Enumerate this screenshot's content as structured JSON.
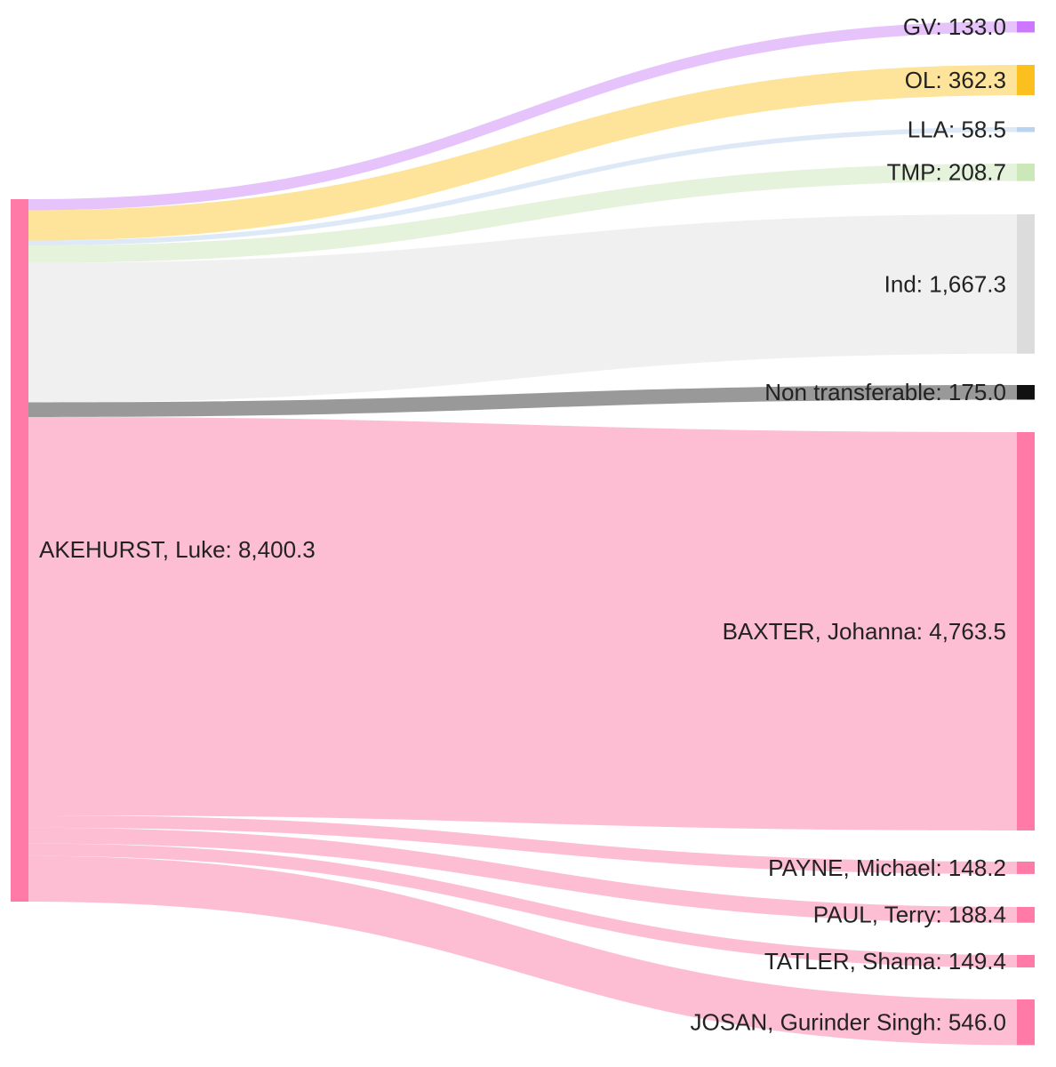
{
  "source": {
    "id": "akehurst",
    "label": "AKEHURST, Luke: 8,400.3",
    "value": 8400.3,
    "color": "#ff7aa6"
  },
  "targets": [
    {
      "id": "gv",
      "label": "GV: 133.0",
      "value": 133.0,
      "node_color": "#cc77ff",
      "link_color": "#e6c3fa"
    },
    {
      "id": "ol",
      "label": "OL: 362.3",
      "value": 362.3,
      "node_color": "#fcc01e",
      "link_color": "#fde49a"
    },
    {
      "id": "lla",
      "label": "LLA: 58.5",
      "value": 58.5,
      "node_color": "#b8d4f0",
      "link_color": "#dde9f6"
    },
    {
      "id": "tmp",
      "label": "TMP: 208.7",
      "value": 208.7,
      "node_color": "#cce8b9",
      "link_color": "#e5f2dc"
    },
    {
      "id": "ind",
      "label": "Ind: 1,667.3",
      "value": 1667.3,
      "node_color": "#dcdcdc",
      "link_color": "#f0f0f0"
    },
    {
      "id": "non-transferable",
      "label": "Non transferable: 175.0",
      "value": 175.0,
      "node_color": "#111111",
      "link_color": "#999999"
    },
    {
      "id": "baxter",
      "label": "BAXTER, Johanna: 4,763.5",
      "value": 4763.5,
      "node_color": "#ff7aa6",
      "link_color": "#fdbdd3"
    },
    {
      "id": "payne",
      "label": "PAYNE, Michael: 148.2",
      "value": 148.2,
      "node_color": "#ff7aa6",
      "link_color": "#fdbdd3"
    },
    {
      "id": "paul",
      "label": "PAUL, Terry: 188.4",
      "value": 188.4,
      "node_color": "#ff7aa6",
      "link_color": "#fdbdd3"
    },
    {
      "id": "tatler",
      "label": "TATLER, Shama: 149.4",
      "value": 149.4,
      "node_color": "#ff7aa6",
      "link_color": "#fdbdd3"
    },
    {
      "id": "josan",
      "label": "JOSAN, Gurinder Singh: 546.0",
      "value": 546.0,
      "node_color": "#ff7aa6",
      "link_color": "#fdbdd3"
    }
  ]
}
